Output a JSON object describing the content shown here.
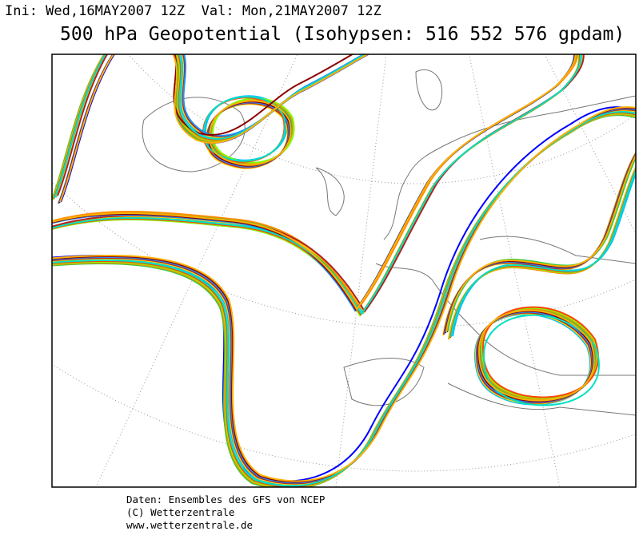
{
  "header": {
    "init": "Ini: Wed,16MAY2007 12Z",
    "valid": "Val: Mon,21MAY2007 12Z",
    "title": "500 hPa Geopotential (Isohypsen: 516 552 576 gpdam)"
  },
  "footer": [
    "Daten: Ensembles des GFS von NCEP",
    "(C) Wetterzentrale",
    "www.wetterzentrale.de"
  ]
}
